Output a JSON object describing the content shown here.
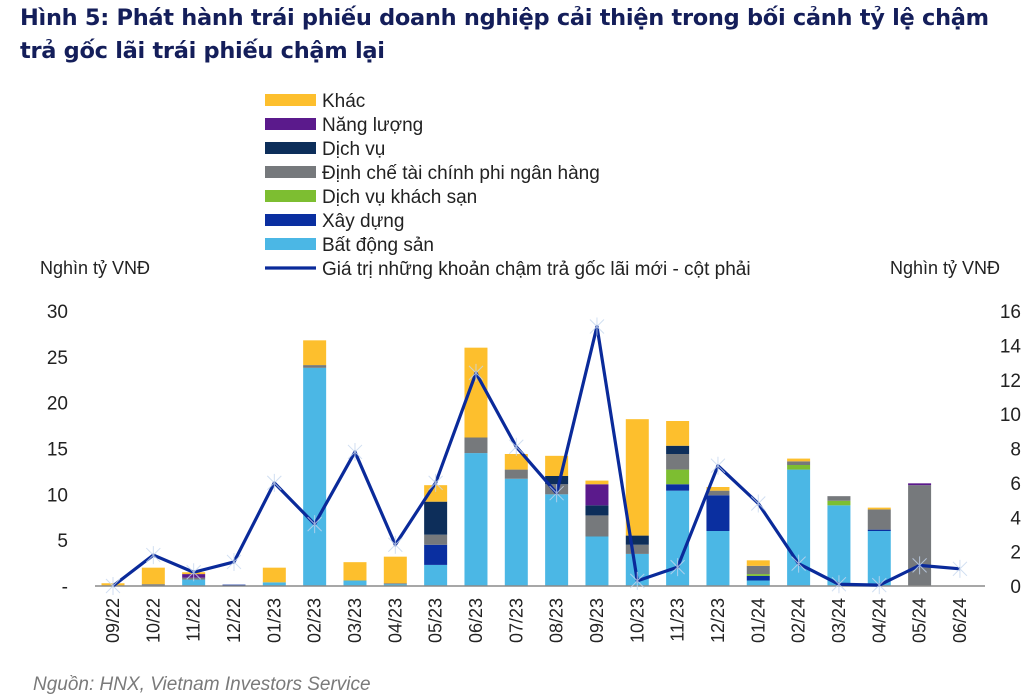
{
  "title": "Hình 5: Phát hành trái phiếu doanh nghiệp cải thiện trong bối cảnh tỷ lệ chậm trả gốc lãi trái phiếu chậm lại",
  "source": "Nguồn: HNX, Vietnam Investors Service",
  "chart_data": {
    "type": "bar+line",
    "stacked": true,
    "ylabel_left": "Nghìn tỷ VNĐ",
    "ylabel_right": "Nghìn tỷ VNĐ",
    "ylim_left": [
      0,
      30
    ],
    "ylim_right": [
      0,
      16
    ],
    "yticks_left": [
      "-",
      "5",
      "10",
      "15",
      "20",
      "25",
      "30"
    ],
    "yticks_right": [
      "0",
      "2",
      "4",
      "6",
      "8",
      "10",
      "12",
      "14",
      "16"
    ],
    "grid": false,
    "legend_position": "top-center",
    "categories": [
      "09/22",
      "10/22",
      "11/22",
      "12/22",
      "01/23",
      "02/23",
      "03/23",
      "04/23",
      "05/23",
      "06/23",
      "07/23",
      "08/23",
      "09/23",
      "10/23",
      "11/23",
      "12/23",
      "01/24",
      "02/24",
      "03/24",
      "04/24",
      "05/24",
      "06/24"
    ],
    "series": [
      {
        "name": "Bất động sản",
        "color": "#4BB7E5",
        "axis": "left",
        "values": [
          0,
          0,
          0.7,
          0,
          0.4,
          23.8,
          0.6,
          0.2,
          2.3,
          14.5,
          11.7,
          10.0,
          5.4,
          3.5,
          10.4,
          6.0,
          0.6,
          12.7,
          8.8,
          6.0,
          0,
          0
        ]
      },
      {
        "name": "Xây dựng",
        "color": "#0A2FA0",
        "axis": "left",
        "values": [
          0,
          0,
          0,
          0.15,
          0,
          0,
          0,
          0,
          2.2,
          0,
          0,
          0,
          0,
          0,
          0.7,
          3.9,
          0.5,
          0,
          0,
          0.15,
          0,
          0
        ]
      },
      {
        "name": "Dịch vụ khách sạn",
        "color": "#7DBE31",
        "axis": "left",
        "values": [
          0,
          0,
          0,
          0,
          0,
          0,
          0,
          0,
          0,
          0,
          0,
          0,
          0,
          0,
          1.6,
          0,
          0.2,
          0.5,
          0.5,
          0,
          0,
          0
        ]
      },
      {
        "name": "Định chế tài chính phi ngân hàng",
        "color": "#76797C",
        "axis": "left",
        "values": [
          0,
          0.2,
          0.2,
          0,
          0,
          0.3,
          0,
          0.1,
          1.1,
          1.7,
          1.0,
          1.1,
          2.3,
          1.0,
          1.7,
          0.5,
          0.9,
          0.4,
          0.5,
          2.2,
          11.0,
          0
        ]
      },
      {
        "name": "Dịch vụ",
        "color": "#0D2E5A",
        "axis": "left",
        "values": [
          0,
          0,
          0,
          0,
          0,
          0,
          0,
          0,
          3.6,
          0,
          0,
          0.9,
          1.1,
          1.0,
          0.9,
          0,
          0,
          0,
          0,
          0,
          0,
          0
        ]
      },
      {
        "name": "Năng lượng",
        "color": "#5B1A8C",
        "axis": "left",
        "values": [
          0,
          0,
          0.4,
          0,
          0,
          0,
          0,
          0,
          0,
          0,
          0,
          0,
          2.3,
          0,
          0,
          0,
          0,
          0,
          0,
          0,
          0.2,
          0
        ]
      },
      {
        "name": "Khác",
        "color": "#FDBF2D",
        "axis": "left",
        "values": [
          0.3,
          1.8,
          0.2,
          0,
          1.6,
          2.7,
          2.0,
          2.9,
          1.8,
          9.8,
          1.7,
          2.2,
          0.4,
          12.7,
          2.7,
          0.4,
          0.6,
          0.3,
          0,
          0.2,
          0,
          0
        ]
      }
    ],
    "line": {
      "name": "Giá trị những khoản chậm trả gốc lãi mới - cột phải",
      "color": "#0A2A9A",
      "axis": "right",
      "values": [
        0,
        1.8,
        0.8,
        1.4,
        6.0,
        3.6,
        7.8,
        2.4,
        6.0,
        12.4,
        8.1,
        5.4,
        15.1,
        0.3,
        1.1,
        7.0,
        4.8,
        1.3,
        0.1,
        0.05,
        1.2,
        1.0
      ]
    },
    "legend_order": [
      "Khác",
      "Năng lượng",
      "Dịch vụ",
      "Định chế tài chính phi ngân hàng",
      "Dịch vụ khách sạn",
      "Xây dựng",
      "Bất động sản",
      "Giá trị những khoản chậm trả gốc lãi mới - cột phải"
    ]
  }
}
